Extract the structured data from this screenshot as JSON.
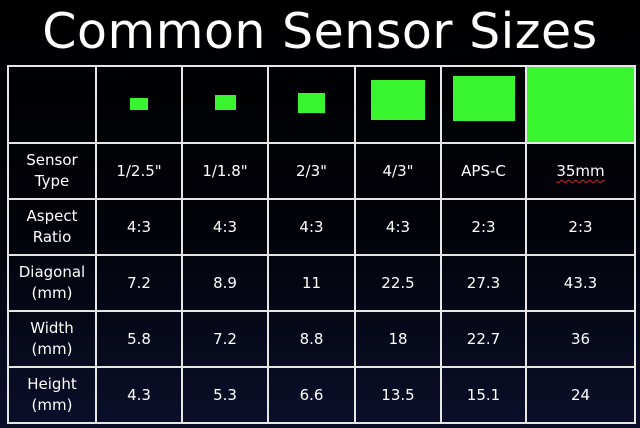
{
  "title": "Common Sensor Sizes",
  "sensor_color": "#38f52f",
  "columns": [
    "1/2.5\"",
    "1/1.8\"",
    "2/3\"",
    "4/3\"",
    "APS-C",
    "35mm"
  ],
  "rows": [
    {
      "label_line1": "Sensor",
      "label_line2": "Type",
      "values": [
        "1/2.5\"",
        "1/1.8\"",
        "2/3\"",
        "4/3\"",
        "APS-C",
        "35mm"
      ]
    },
    {
      "label_line1": "Aspect",
      "label_line2": "Ratio",
      "values": [
        "4:3",
        "4:3",
        "4:3",
        "4:3",
        "2:3",
        "2:3"
      ]
    },
    {
      "label_line1": "Diagonal",
      "label_line2": "(mm)",
      "values": [
        "7.2",
        "8.9",
        "11",
        "22.5",
        "27.3",
        "43.3"
      ]
    },
    {
      "label_line1": "Width",
      "label_line2": "(mm)",
      "values": [
        "5.8",
        "7.2",
        "8.8",
        "18",
        "22.7",
        "36"
      ]
    },
    {
      "label_line1": "Height",
      "label_line2": "(mm)",
      "values": [
        "4.3",
        "5.3",
        "6.6",
        "13.5",
        "15.1",
        "24"
      ]
    }
  ]
}
